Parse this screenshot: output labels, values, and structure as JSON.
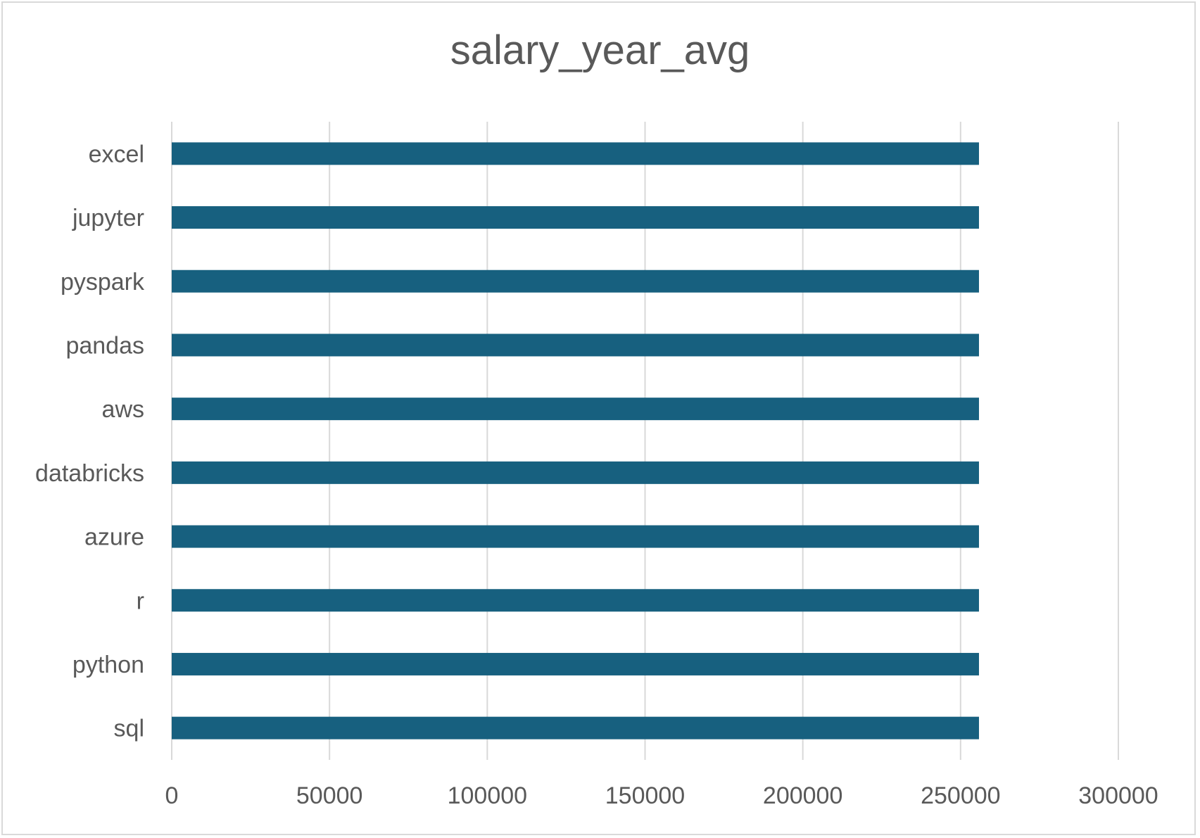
{
  "chart_data": {
    "type": "bar",
    "orientation": "horizontal",
    "title": "salary_year_avg",
    "xlabel": "",
    "ylabel": "",
    "categories": [
      "excel",
      "jupyter",
      "pyspark",
      "pandas",
      "aws",
      "databricks",
      "azure",
      "r",
      "python",
      "sql"
    ],
    "values": [
      255830,
      255830,
      255830,
      255830,
      255830,
      255830,
      255830,
      255830,
      255830,
      255830
    ],
    "xlim": [
      0,
      300000
    ],
    "x_ticks": [
      "0",
      "50000",
      "100000",
      "150000",
      "200000",
      "250000",
      "300000"
    ],
    "grid": true,
    "legend": "none",
    "bar_color": "#17607f",
    "grid_color": "#d9d9d9",
    "text_color": "#595959"
  }
}
